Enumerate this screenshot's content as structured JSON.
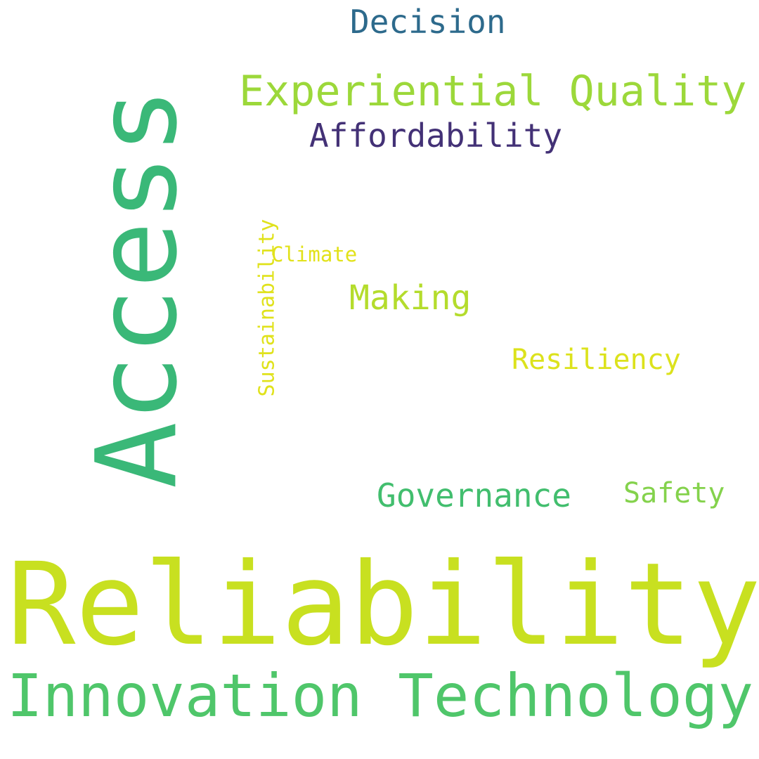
{
  "word_cloud": {
    "words": [
      {
        "id": "reliability",
        "text": "Reliability",
        "color": "#c8e020"
      },
      {
        "id": "access",
        "text": "Access",
        "color": "#3ab878",
        "orientation": "vertical"
      },
      {
        "id": "innovation-technology",
        "text": "Innovation Technology",
        "color": "#4fc66a"
      },
      {
        "id": "experiential-quality",
        "text": "Experiential Quality",
        "color": "#9cd83a"
      },
      {
        "id": "decision",
        "text": "Decision",
        "color": "#2d6a8c"
      },
      {
        "id": "affordability",
        "text": "Affordability",
        "color": "#433176"
      },
      {
        "id": "making",
        "text": "Making",
        "color": "#b4dc2c"
      },
      {
        "id": "governance",
        "text": "Governance",
        "color": "#42be6e"
      },
      {
        "id": "safety",
        "text": "Safety",
        "color": "#84d24c"
      },
      {
        "id": "resiliency",
        "text": "Resiliency",
        "color": "#dce21c"
      },
      {
        "id": "climate",
        "text": "Climate",
        "color": "#e2e21a"
      },
      {
        "id": "sustainability",
        "text": "Sustainability",
        "color": "#e0e21c",
        "orientation": "vertical"
      }
    ]
  }
}
